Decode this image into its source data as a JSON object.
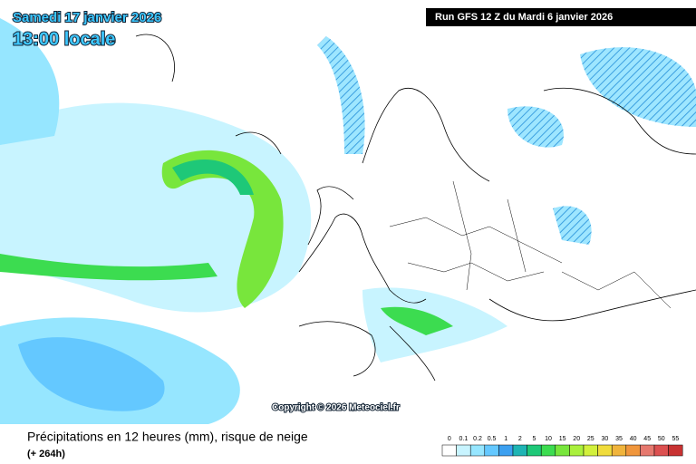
{
  "header": {
    "date": "Samedi 17 janvier 2026",
    "time": "13:00 locale",
    "run": "Run GFS 12 Z du Mardi 6 janvier 2026"
  },
  "copyright": "Copyright © 2026 Meteociel.fr",
  "footer": {
    "title": "Précipitations en 12 heures (mm), risque de neige",
    "lead": "(+ 264h)"
  },
  "legend": {
    "labels": [
      0,
      0.1,
      0.2,
      0.5,
      1,
      2,
      5,
      10,
      15,
      20,
      25,
      30,
      35,
      40,
      45,
      50,
      55
    ],
    "colors": [
      "#ffffff",
      "#c8f4ff",
      "#96e6ff",
      "#64c8ff",
      "#3ca0f0",
      "#1eb4b4",
      "#1ec878",
      "#3cdc50",
      "#78e63c",
      "#aaf03c",
      "#d2f03c",
      "#f0dc3c",
      "#f0b43c",
      "#f0963c",
      "#e6786e",
      "#dc5050",
      "#c83232"
    ]
  }
}
